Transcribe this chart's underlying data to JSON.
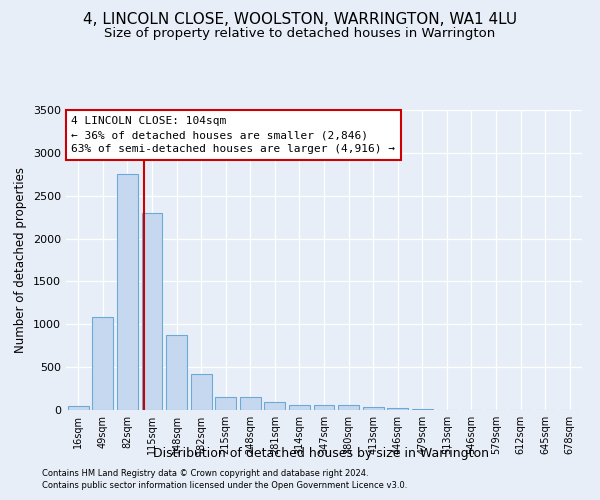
{
  "title": "4, LINCOLN CLOSE, WOOLSTON, WARRINGTON, WA1 4LU",
  "subtitle": "Size of property relative to detached houses in Warrington",
  "xlabel": "Distribution of detached houses by size in Warrington",
  "ylabel": "Number of detached properties",
  "footer_line1": "Contains HM Land Registry data © Crown copyright and database right 2024.",
  "footer_line2": "Contains public sector information licensed under the Open Government Licence v3.0.",
  "bins": [
    "16sqm",
    "49sqm",
    "82sqm",
    "115sqm",
    "148sqm",
    "182sqm",
    "215sqm",
    "248sqm",
    "281sqm",
    "314sqm",
    "347sqm",
    "380sqm",
    "413sqm",
    "446sqm",
    "479sqm",
    "513sqm",
    "546sqm",
    "579sqm",
    "612sqm",
    "645sqm",
    "678sqm"
  ],
  "bar_values": [
    50,
    1080,
    2750,
    2300,
    880,
    420,
    155,
    155,
    90,
    60,
    55,
    55,
    40,
    25,
    8,
    4,
    2,
    1,
    0,
    0,
    0
  ],
  "bar_color": "#c5d8f0",
  "bar_edge_color": "#6aaad4",
  "subject_line_color": "#cc0000",
  "annotation_text": "4 LINCOLN CLOSE: 104sqm\n← 36% of detached houses are smaller (2,846)\n63% of semi-detached houses are larger (4,916) →",
  "annotation_box_color": "#cc0000",
  "ylim": [
    0,
    3500
  ],
  "yticks": [
    0,
    500,
    1000,
    1500,
    2000,
    2500,
    3000,
    3500
  ],
  "background_color": "#e8eef8",
  "plot_bg_color": "#e8eef8",
  "grid_color": "#ffffff",
  "title_fontsize": 11,
  "subtitle_fontsize": 9.5,
  "xlabel_fontsize": 9,
  "ylabel_fontsize": 8.5
}
